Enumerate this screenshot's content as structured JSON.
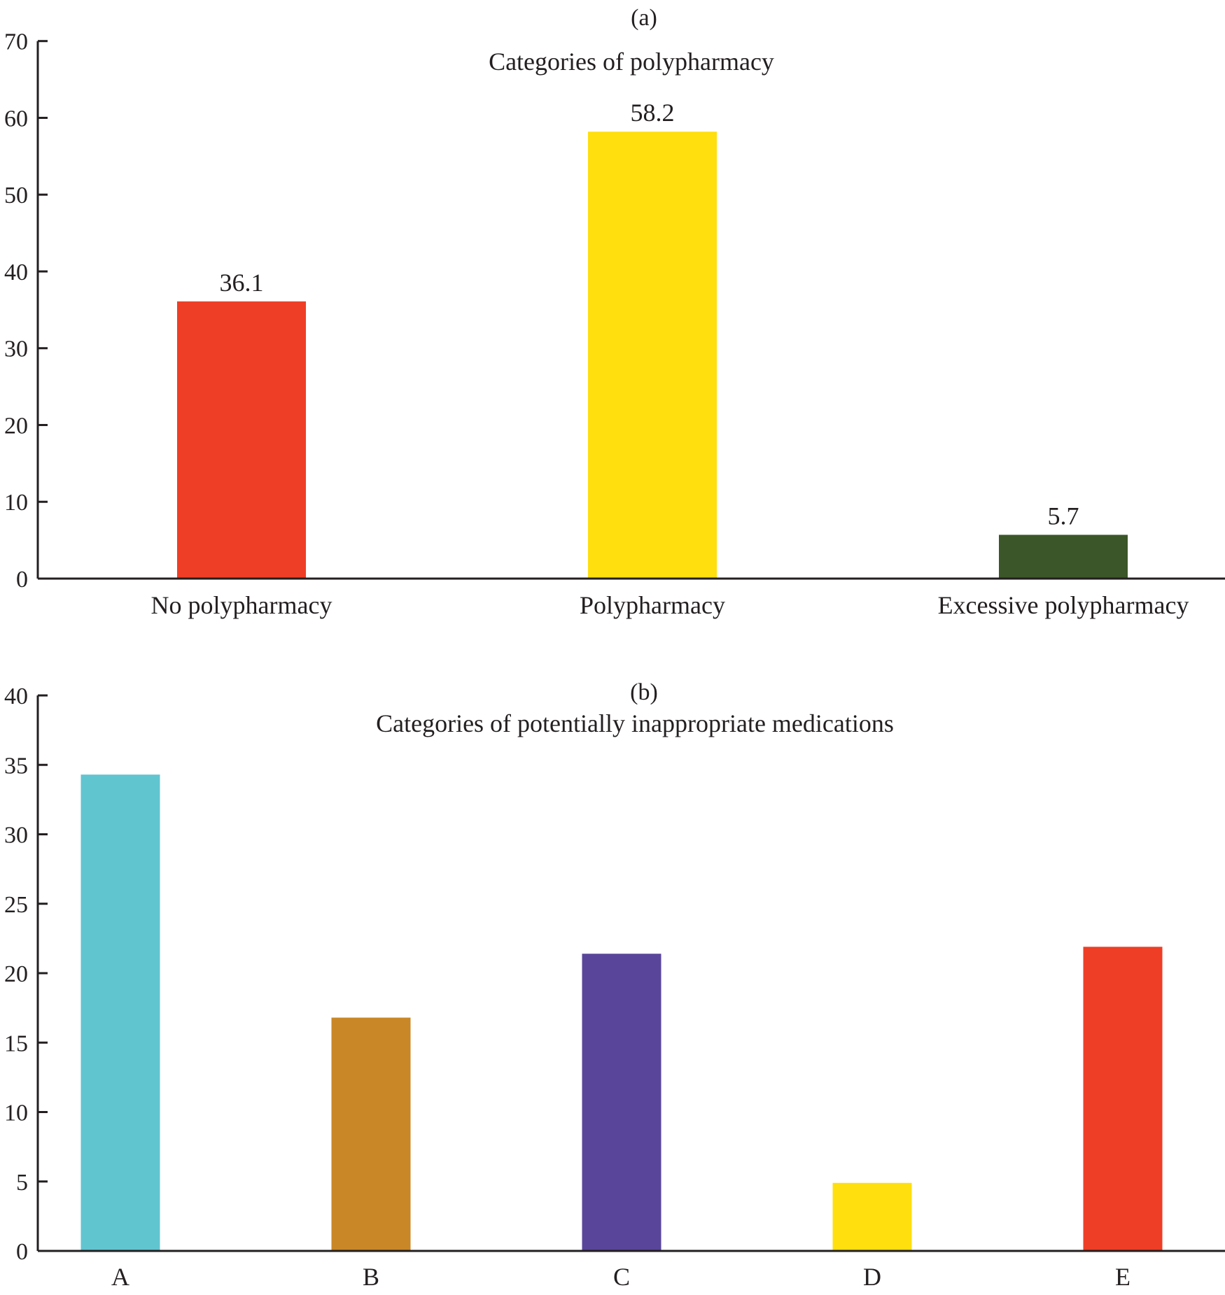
{
  "chart_data": [
    {
      "type": "bar",
      "panel_label": "(a)",
      "title": "Categories of polypharmacy",
      "xlabel": "",
      "ylabel": "",
      "ylim": [
        0,
        70
      ],
      "yticks": [
        0,
        10,
        20,
        30,
        40,
        50,
        60,
        70
      ],
      "grid": false,
      "legend": "none",
      "categories": [
        "No polypharmacy",
        "Polypharmacy",
        "Excessive polypharmacy"
      ],
      "values": [
        36.1,
        58.2,
        5.7
      ],
      "value_labels": [
        "36.1",
        "58.2",
        "5.7"
      ],
      "colors": [
        "#EE3E25",
        "#FFDF0D",
        "#3B5628"
      ]
    },
    {
      "type": "bar",
      "panel_label": "(b)",
      "title": "Categories of potentially inappropriate medications",
      "xlabel": "",
      "ylabel": "",
      "ylim": [
        0,
        40
      ],
      "yticks": [
        0,
        5,
        10,
        15,
        20,
        25,
        30,
        35,
        40
      ],
      "grid": false,
      "legend": "none",
      "categories": [
        "A",
        "B",
        "C",
        "D",
        "E"
      ],
      "values": [
        34.3,
        16.8,
        21.4,
        4.9,
        21.9
      ],
      "colors": [
        "#61C5D0",
        "#C98727",
        "#59469A",
        "#FFDF0D",
        "#EE3E25"
      ]
    }
  ]
}
